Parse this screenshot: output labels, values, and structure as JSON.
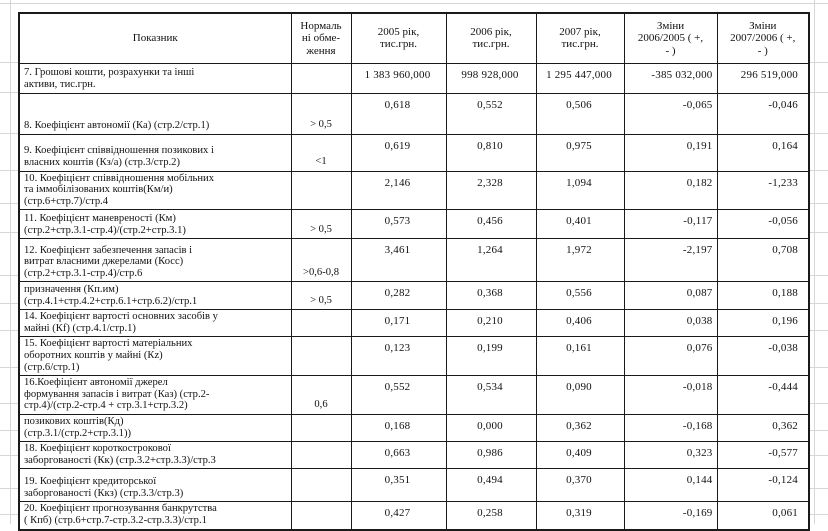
{
  "table": {
    "columns": [
      {
        "key": "label",
        "header": "Показник"
      },
      {
        "key": "limit",
        "header": "Нормаль\nні обме-\nження"
      },
      {
        "key": "y2005",
        "header": "2005 рік,\nтис.грн."
      },
      {
        "key": "y2006",
        "header": "2006 рік,\nтис.грн."
      },
      {
        "key": "y2007",
        "header": "2007 рік,\nтис.грн."
      },
      {
        "key": "d2006_2005",
        "header": "Зміни\n2006/2005 ( +,\n- )"
      },
      {
        "key": "d2007_2006",
        "header": "Зміни\n2007/2006 ( +,\n- )"
      }
    ],
    "rows": [
      {
        "label": "7. Грошові кошти, розрахунки та інші\nактиви, тис.грн.",
        "limit": "",
        "y2005": "1 383 960,000",
        "y2006": "998 928,000",
        "y2007": "1 295 447,000",
        "d2006_2005": "-385 032,000",
        "d2007_2006": "296 519,000"
      },
      {
        "label": "8. Коефіцієнт автономії (Ка) (стр.2/стр.1)",
        "limit": "> 0,5",
        "y2005": "0,618",
        "y2006": "0,552",
        "y2007": "0,506",
        "d2006_2005": "-0,065",
        "d2007_2006": "-0,046"
      },
      {
        "label": "9. Коефіцієнт співвідношення позикових і\nвласних коштів (Кз/а) (стр.3/стр.2)",
        "limit": "<1",
        "y2005": "0,619",
        "y2006": "0,810",
        "y2007": "0,975",
        "d2006_2005": "0,191",
        "d2007_2006": "0,164"
      },
      {
        "label": "10. Коефіцієнт співвідношення мобільних\nта іммобілізованих коштів(Км/и)\n(стр.6+стр.7)/стр.4",
        "limit": "",
        "y2005": "2,146",
        "y2006": "2,328",
        "y2007": "1,094",
        "d2006_2005": "0,182",
        "d2007_2006": "-1,233"
      },
      {
        "label": "11. Коефіцієнт маневреності (Км)\n(стр.2+стр.3.1-стр.4)/(стр.2+стр.3.1)",
        "limit": "> 0,5",
        "y2005": "0,573",
        "y2006": "0,456",
        "y2007": "0,401",
        "d2006_2005": "-0,117",
        "d2007_2006": "-0,056"
      },
      {
        "label": "12. Коефіцієнт забезпечення запасів і\nвитрат власними джерелами (Косс)\n(стр.2+стр.3.1-стр.4)/стр.6",
        "limit": ">0,6-0,8",
        "y2005": "3,461",
        "y2006": "1,264",
        "y2007": "1,972",
        "d2006_2005": "-2,197",
        "d2007_2006": "0,708"
      },
      {
        "label": "призначення  (Кп.им)\n(стр.4.1+стр.4.2+стр.6.1+стр.6.2)/стр.1",
        "limit": "> 0,5",
        "y2005": "0,282",
        "y2006": "0,368",
        "y2007": "0,556",
        "d2006_2005": "0,087",
        "d2007_2006": "0,188"
      },
      {
        "label": "14. Коефіцієнт вартості основних засобів у\nмайні (Кf)  (стр.4.1/стр.1)",
        "limit": "",
        "y2005": "0,171",
        "y2006": "0,210",
        "y2007": "0,406",
        "d2006_2005": "0,038",
        "d2007_2006": "0,196"
      },
      {
        "label": "15. Коефіцієнт вартості матеріальних\nоборотних коштів у майні (Кz)\n(стр.6/стр.1)",
        "limit": "",
        "y2005": "0,123",
        "y2006": "0,199",
        "y2007": "0,161",
        "d2006_2005": "0,076",
        "d2007_2006": "-0,038"
      },
      {
        "label": "16.Коефіцієнт автономії джерел\nформування запасів і витрат (Каз) (стр.2-\nстр.4)/(стр.2-стр.4 + стр.3.1+стр.3.2)",
        "limit": "0,6",
        "y2005": "0,552",
        "y2006": "0,534",
        "y2007": "0,090",
        "d2006_2005": "-0,018",
        "d2007_2006": "-0,444"
      },
      {
        "label": "позикових коштів(Кд)\n(стр.3.1/(стр.2+стр.3.1))",
        "limit": "",
        "y2005": "0,168",
        "y2006": "0,000",
        "y2007": "0,362",
        "d2006_2005": "-0,168",
        "d2007_2006": "0,362"
      },
      {
        "label": "18. Коефіцієнт короткострокової\nзаборгованості (Кк) (стр.3.2+стр.3.3)/стр.3",
        "limit": "",
        "y2005": "0,663",
        "y2006": "0,986",
        "y2007": "0,409",
        "d2006_2005": "0,323",
        "d2007_2006": "-0,577"
      },
      {
        "label": "19. Коефіцієнт кредиторської\nзаборгованості (Ккз) (стр.3.3/стр.3)",
        "limit": "",
        "y2005": "0,351",
        "y2006": "0,494",
        "y2007": "0,370",
        "d2006_2005": "0,144",
        "d2007_2006": "-0,124"
      },
      {
        "label": "20. Коефіцієнт прогнозування банкрутства\n( Кпб) (стр.6+стр.7-стр.3.2-стр.3.3)/стр.1",
        "limit": "",
        "y2005": "0,427",
        "y2006": "0,258",
        "y2007": "0,319",
        "d2006_2005": "-0,169",
        "d2007_2006": "0,061"
      }
    ]
  }
}
